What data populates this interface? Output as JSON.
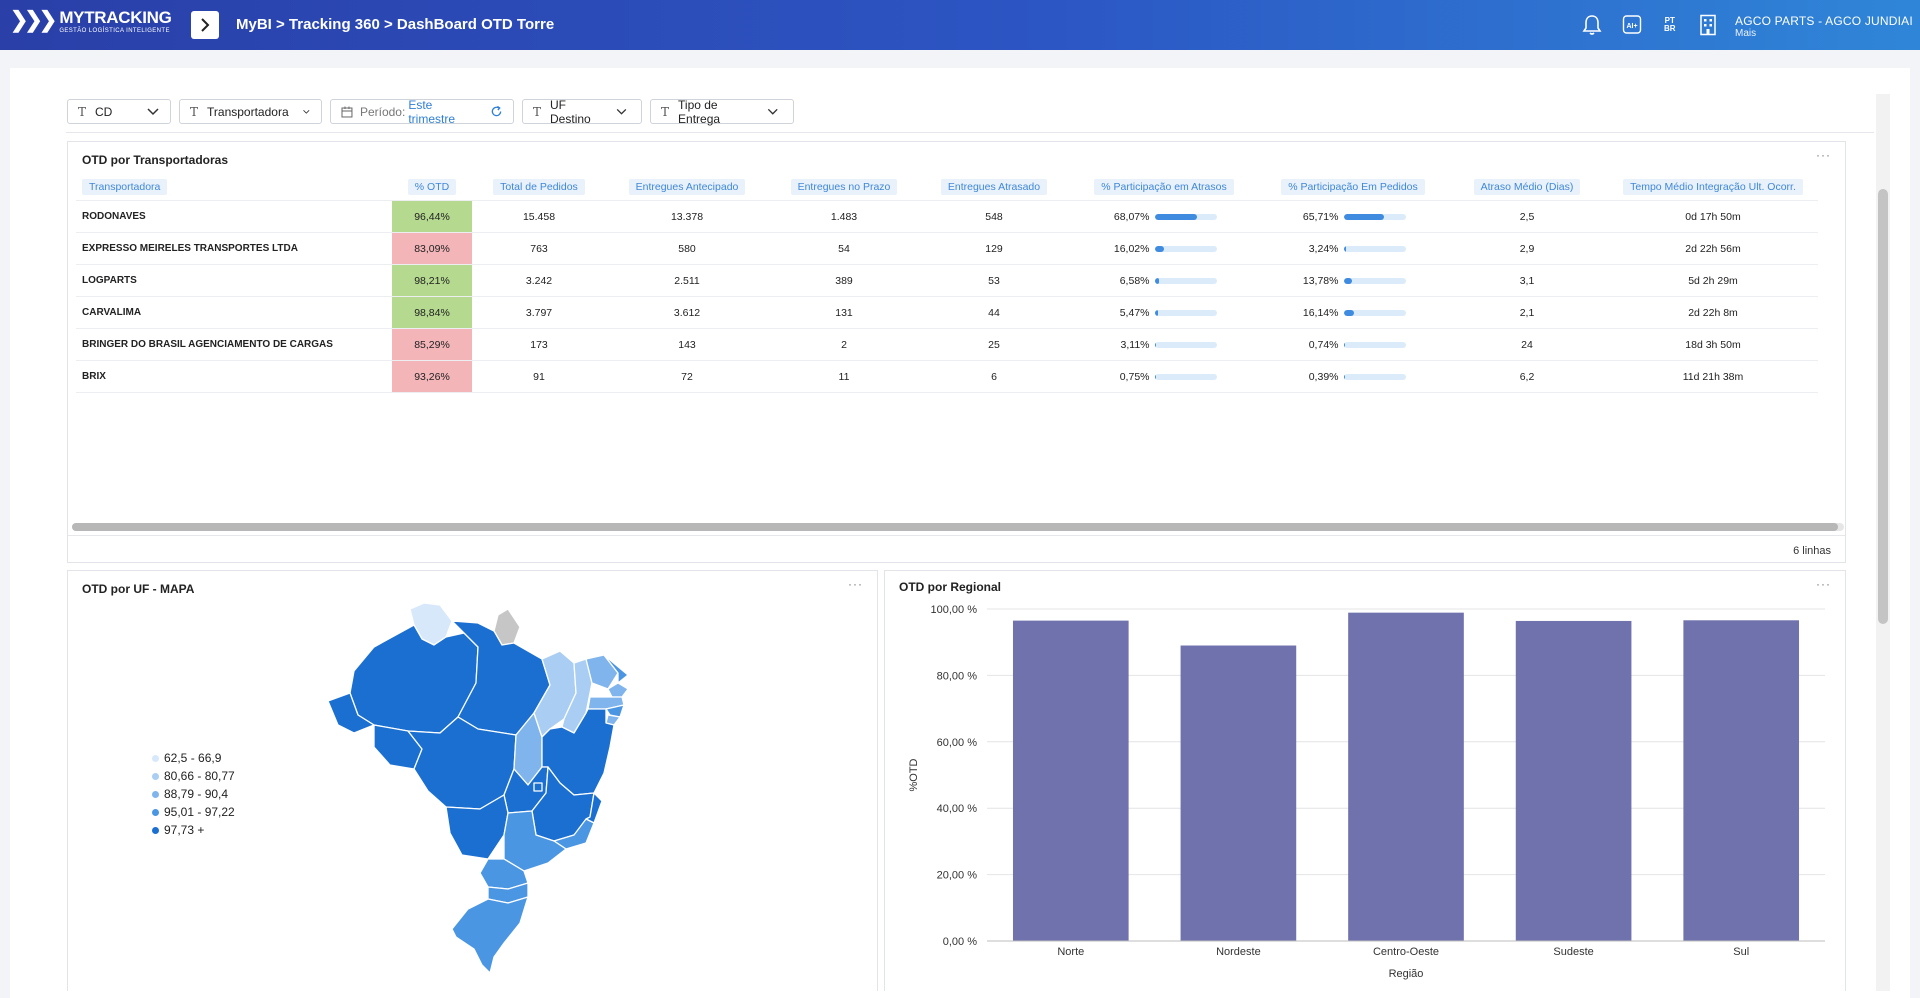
{
  "header": {
    "logo_name": "MYTRACKING",
    "logo_tagline": "GESTÃO LOGÍSTICA INTELIGENTE",
    "breadcrumb": "MyBI > Tracking 360 > DashBoard OTD Torre",
    "lang_top": "PT",
    "lang_bottom": "BR",
    "ai_label": "AI+",
    "org_name": "AGCO PARTS - AGCO JUNDIAI",
    "org_sub": "Mais"
  },
  "filters": {
    "cd": "CD",
    "transportadora": "Transportadora",
    "periodo_label": "Período:",
    "periodo_value": "Este trimestre",
    "uf_destino": "UF Destino",
    "tipo_entrega": "Tipo de Entrega"
  },
  "table_panel": {
    "title": "OTD por Transportadoras",
    "more": "···",
    "row_count": "6 linhas",
    "columns": [
      "Transportadora",
      "% OTD",
      "Total de Pedidos",
      "Entregues Antecipado",
      "Entregues no Prazo",
      "Entregues Atrasado",
      "% Participação em Atrasos",
      "% Participação Em Pedidos",
      "Atraso Médio (Dias)",
      "Tempo Médio Integração Ult. Ocorr."
    ],
    "rows": [
      {
        "name": "RODONAVES",
        "otd": "96,44%",
        "otd_status": "good",
        "total": "15.458",
        "antecipado": "13.378",
        "prazo": "1.483",
        "atrasado": "548",
        "part_atrasos": "68,07%",
        "part_atrasos_frac": 0.6807,
        "part_pedidos": "65,71%",
        "part_pedidos_frac": 0.6571,
        "atraso_medio": "2,5",
        "tempo": "0d 17h 50m"
      },
      {
        "name": "EXPRESSO MEIRELES TRANSPORTES LTDA",
        "otd": "83,09%",
        "otd_status": "bad",
        "total": "763",
        "antecipado": "580",
        "prazo": "54",
        "atrasado": "129",
        "part_atrasos": "16,02%",
        "part_atrasos_frac": 0.1602,
        "part_pedidos": "3,24%",
        "part_pedidos_frac": 0.0324,
        "atraso_medio": "2,9",
        "tempo": "2d 22h 56m"
      },
      {
        "name": "LOGPARTS",
        "otd": "98,21%",
        "otd_status": "good",
        "total": "3.242",
        "antecipado": "2.511",
        "prazo": "389",
        "atrasado": "53",
        "part_atrasos": "6,58%",
        "part_atrasos_frac": 0.0658,
        "part_pedidos": "13,78%",
        "part_pedidos_frac": 0.1378,
        "atraso_medio": "3,1",
        "tempo": "5d 2h 29m"
      },
      {
        "name": "CARVALIMA",
        "otd": "98,84%",
        "otd_status": "good",
        "total": "3.797",
        "antecipado": "3.612",
        "prazo": "131",
        "atrasado": "44",
        "part_atrasos": "5,47%",
        "part_atrasos_frac": 0.0547,
        "part_pedidos": "16,14%",
        "part_pedidos_frac": 0.1614,
        "atraso_medio": "2,1",
        "tempo": "2d 22h 8m"
      },
      {
        "name": "BRINGER DO BRASIL AGENCIAMENTO DE CARGAS",
        "otd": "85,29%",
        "otd_status": "bad",
        "total": "173",
        "antecipado": "143",
        "prazo": "2",
        "atrasado": "25",
        "part_atrasos": "3,11%",
        "part_atrasos_frac": 0.0311,
        "part_pedidos": "0,74%",
        "part_pedidos_frac": 0.0074,
        "atraso_medio": "24",
        "tempo": "18d 3h 50m"
      },
      {
        "name": "BRIX",
        "otd": "93,26%",
        "otd_status": "bad",
        "total": "91",
        "antecipado": "72",
        "prazo": "11",
        "atrasado": "6",
        "part_atrasos": "0,75%",
        "part_atrasos_frac": 0.0075,
        "part_pedidos": "0,39%",
        "part_pedidos_frac": 0.0039,
        "atraso_medio": "6,2",
        "tempo": "11d 21h 38m"
      }
    ]
  },
  "map_panel": {
    "title": "OTD por UF - MAPA",
    "more": "···",
    "legend": [
      {
        "label": "62,5 - 66,9",
        "color": "#d7e8fa"
      },
      {
        "label": "80,66 - 80,77",
        "color": "#a9cdf3"
      },
      {
        "label": "88,79 - 90,4",
        "color": "#7fb4ec"
      },
      {
        "label": "95,01 - 97,22",
        "color": "#4a96e3"
      },
      {
        "label": "97,73 +",
        "color": "#1a6fd0"
      }
    ],
    "no_data_color": "#c6c6c6"
  },
  "bar_panel": {
    "title": "OTD por Regional",
    "more": "···"
  },
  "chart_data": {
    "type": "bar",
    "categories": [
      "Norte",
      "Nordeste",
      "Centro-Oeste",
      "Sudeste",
      "Sul"
    ],
    "values": [
      96.5,
      89.0,
      98.9,
      96.4,
      96.6
    ],
    "xlabel": "Região",
    "ylabel": "%OTD",
    "ylim": [
      0,
      100
    ],
    "yticks": [
      "0,00 %",
      "20,00 %",
      "40,00 %",
      "60,00 %",
      "80,00 %",
      "100,00 %"
    ],
    "bar_color": "#6f72ad",
    "grid": true
  }
}
